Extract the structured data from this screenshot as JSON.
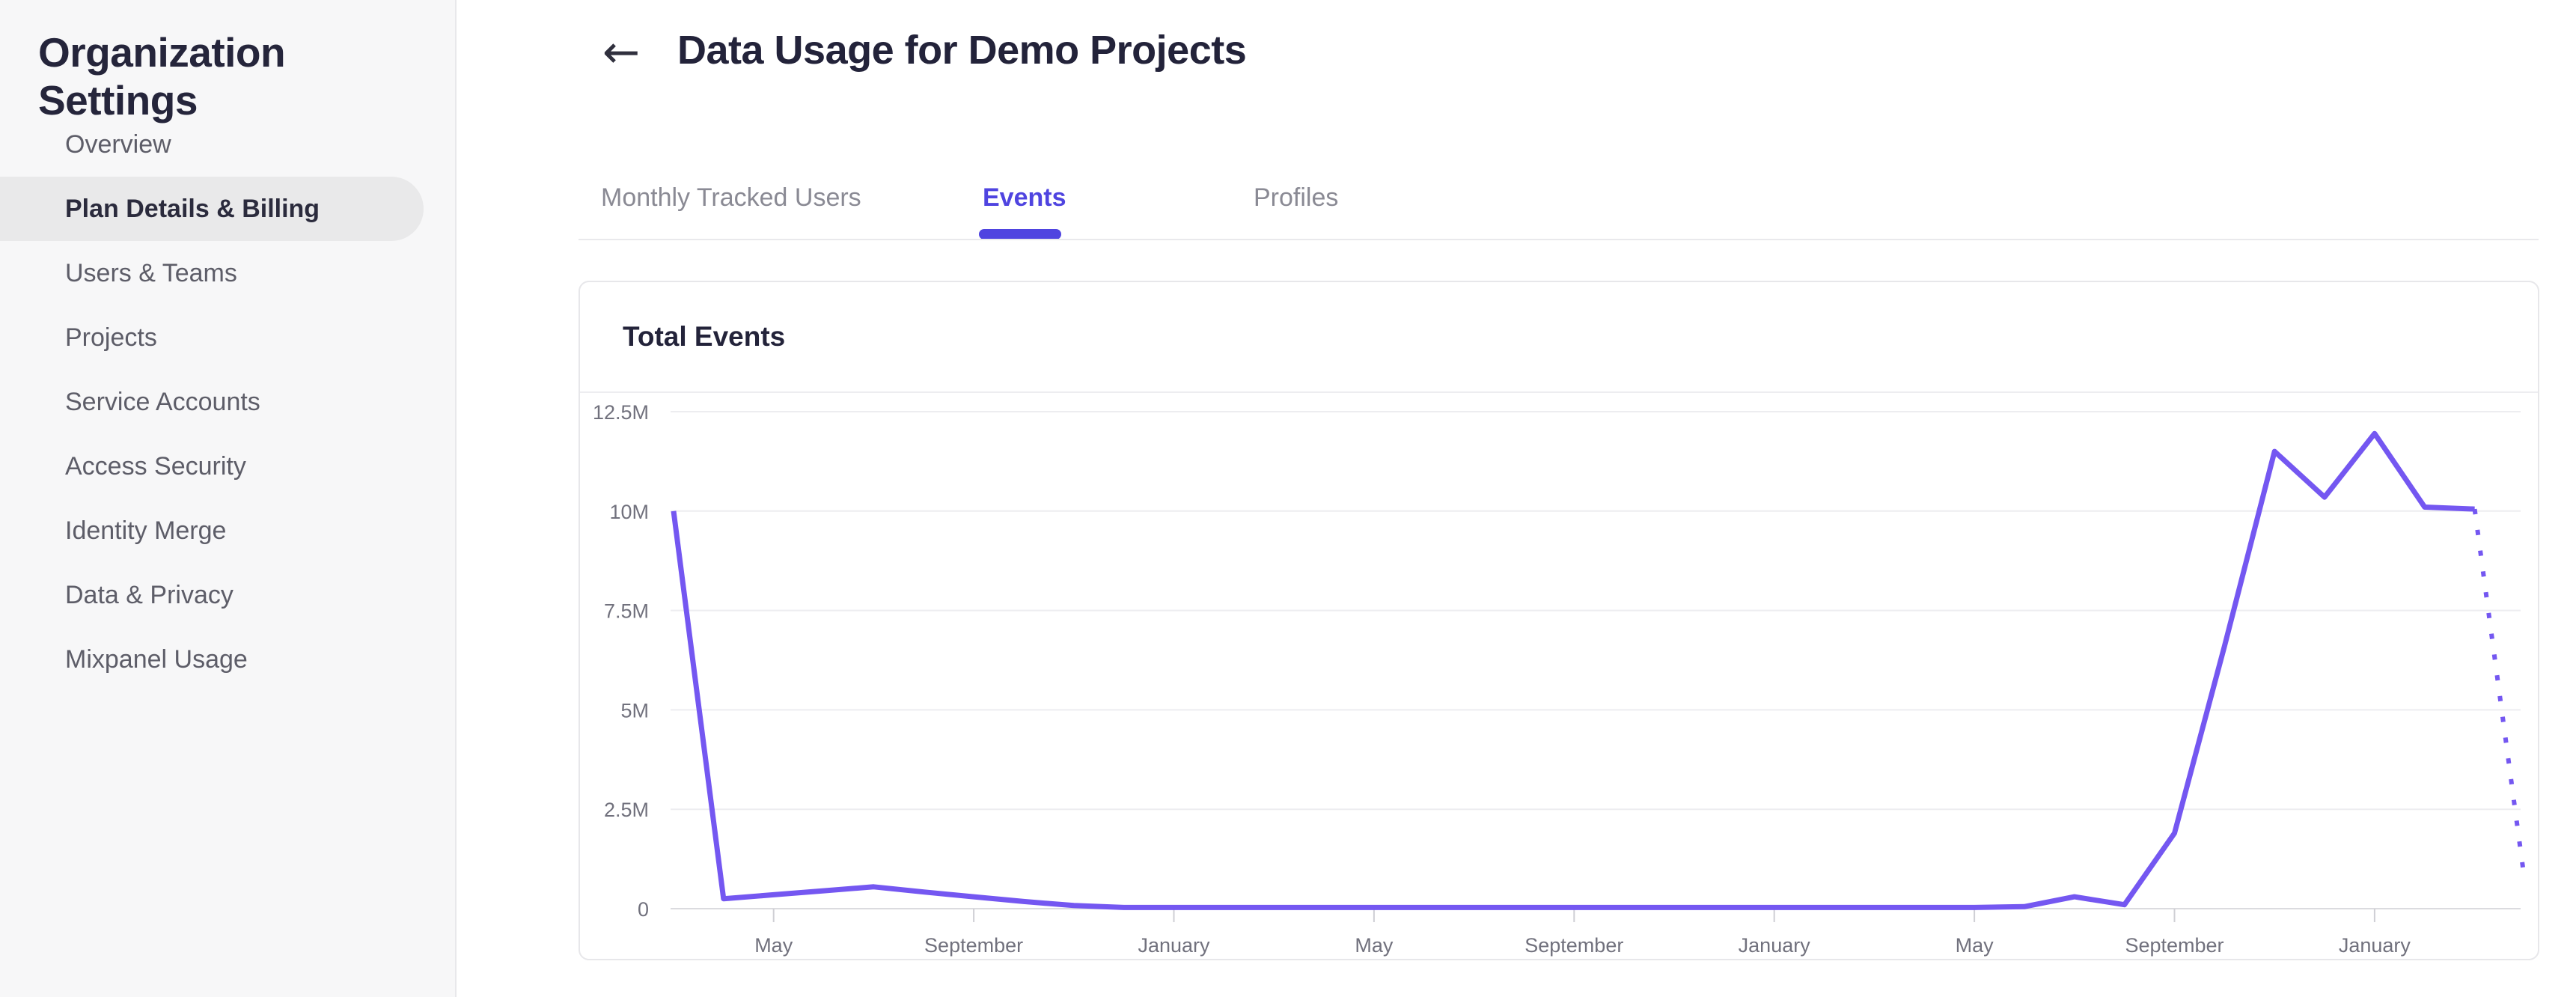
{
  "sidebar": {
    "title": "Organization Settings",
    "items": [
      {
        "label": "Overview",
        "active": false
      },
      {
        "label": "Plan Details & Billing",
        "active": true
      },
      {
        "label": "Users & Teams",
        "active": false
      },
      {
        "label": "Projects",
        "active": false
      },
      {
        "label": "Service Accounts",
        "active": false
      },
      {
        "label": "Access Security",
        "active": false
      },
      {
        "label": "Identity Merge",
        "active": false
      },
      {
        "label": "Data & Privacy",
        "active": false
      },
      {
        "label": "Mixpanel Usage",
        "active": false
      }
    ]
  },
  "header": {
    "back_glyph": "←",
    "title": "Data Usage for Demo Projects"
  },
  "tabs": [
    {
      "label": "Monthly Tracked Users",
      "active": false
    },
    {
      "label": "Events",
      "active": true
    },
    {
      "label": "Profiles",
      "active": false
    }
  ],
  "card": {
    "title": "Total Events"
  },
  "colors": {
    "accent_purple": "#4f44e0",
    "line_purple": "#7457f1",
    "gridline": "#ededf0",
    "axis_line": "#dbdbdf",
    "tick": "#cfcfd5",
    "axis_label": "#71717d",
    "sidebar_bg": "#f7f7f8",
    "active_item_bg": "#e9e9ea"
  },
  "chart_data": {
    "type": "line",
    "title": "Total Events",
    "point_interval": "monthly",
    "ylim_millions": [
      0,
      12.5
    ],
    "y_tick_labels": [
      "12.5M",
      "10M",
      "7.5M",
      "5M",
      "2.5M",
      "0"
    ],
    "y_tick_values_millions": [
      12.5,
      10,
      7.5,
      5,
      2.5,
      0
    ],
    "x_tick_labels": [
      "May",
      "September",
      "January",
      "May",
      "September",
      "January",
      "May",
      "September",
      "January"
    ],
    "x_tick_point_indices": [
      2,
      6,
      10,
      14,
      18,
      22,
      26,
      30,
      34
    ],
    "grid": "horizontal-only",
    "legend": "none",
    "series": [
      {
        "name": "Total Events",
        "values_millions": [
          10,
          0.25,
          0.35,
          0.45,
          0.55,
          0.42,
          0.3,
          0.18,
          0.08,
          0.03,
          0.03,
          0.03,
          0.03,
          0.03,
          0.03,
          0.03,
          0.03,
          0.03,
          0.03,
          0.03,
          0.03,
          0.03,
          0.03,
          0.03,
          0.03,
          0.03,
          0.03,
          0.05,
          0.3,
          0.1,
          1.9,
          6.6,
          11.5,
          10.35,
          11.95,
          10.1,
          10.05
        ],
        "projected_next_value_millions": 0.7,
        "projected_style": "dotted"
      }
    ]
  }
}
